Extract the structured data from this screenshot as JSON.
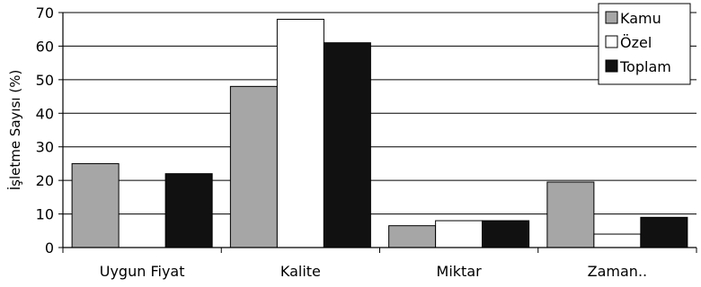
{
  "chart_data": {
    "type": "bar",
    "title": "",
    "xlabel": "",
    "ylabel": "İşletme Sayısı (%)",
    "ylim": [
      0,
      70
    ],
    "yticks": [
      0,
      10,
      20,
      30,
      40,
      50,
      60,
      70
    ],
    "grid": true,
    "legend_position": "top-right",
    "categories": [
      "Uygun Fiyat",
      "Kalite",
      "Miktar",
      "Zaman.."
    ],
    "series": [
      {
        "name": "Kamu",
        "color": "#a6a6a6",
        "values": [
          25,
          48,
          6.5,
          19.5
        ]
      },
      {
        "name": "Özel",
        "color": "#ffffff",
        "values": [
          0,
          68,
          8,
          4
        ]
      },
      {
        "name": "Toplam",
        "color": "#111111",
        "values": [
          22,
          61,
          8,
          9
        ]
      }
    ]
  }
}
